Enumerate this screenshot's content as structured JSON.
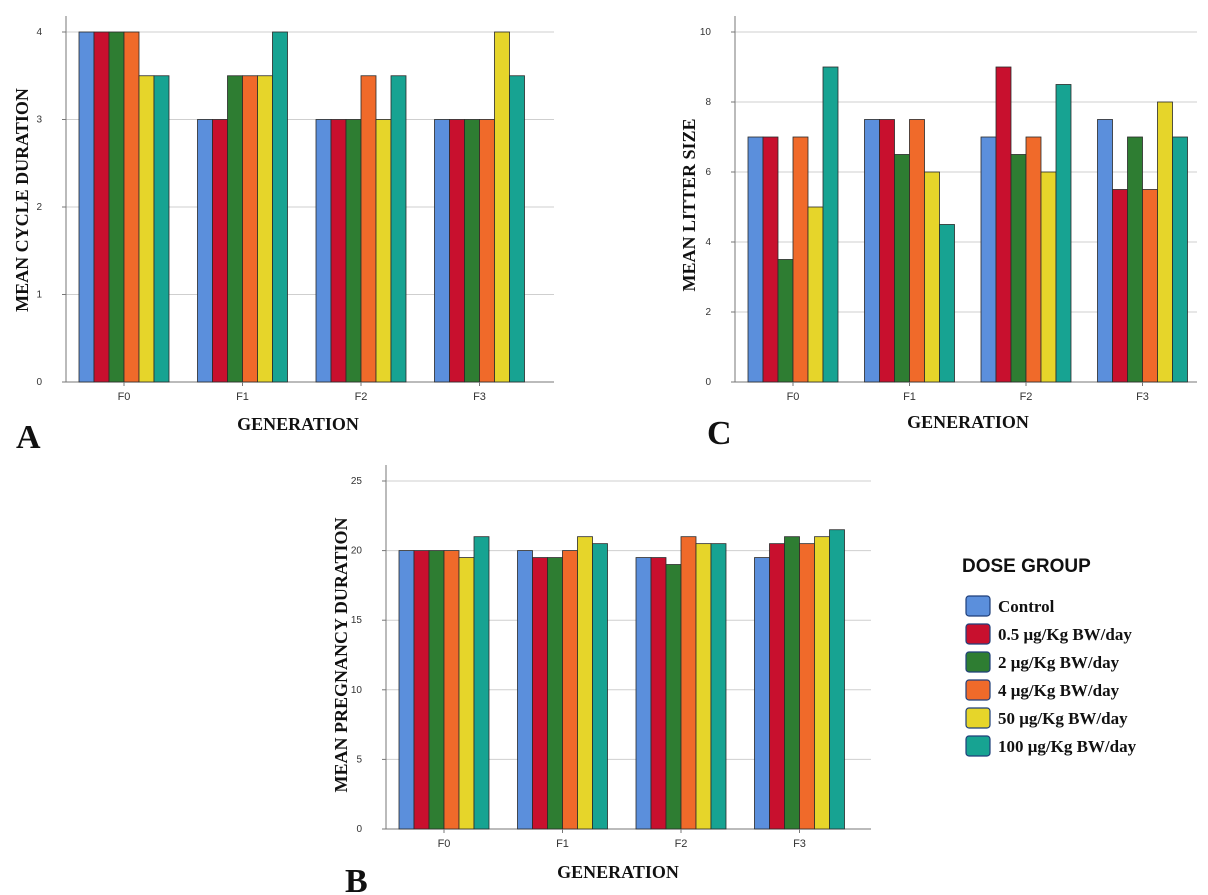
{
  "chart_data": [
    {
      "panel": "A",
      "type": "bar",
      "xlabel": "GENERATION",
      "ylabel": "MEAN CYCLE DURATION",
      "ylim": [
        0,
        4
      ],
      "yticks": [
        0,
        1,
        2,
        3,
        4
      ],
      "grid": true,
      "categories": [
        "F0",
        "F1",
        "F2",
        "F3"
      ],
      "series": [
        {
          "name": "Control",
          "values": [
            4,
            3,
            3,
            3
          ]
        },
        {
          "name": "0.5 μg/Kg BW/day",
          "values": [
            4,
            3,
            3,
            3
          ]
        },
        {
          "name": "2 μg/Kg BW/day",
          "values": [
            4,
            3.5,
            3,
            3
          ]
        },
        {
          "name": "4 μg/Kg BW/day",
          "values": [
            4,
            3.5,
            3.5,
            3
          ]
        },
        {
          "name": "50 μg/Kg BW/day",
          "values": [
            3.5,
            3.5,
            3,
            4
          ]
        },
        {
          "name": "100 μg/Kg BW/day",
          "values": [
            3.5,
            4,
            3.5,
            3.5
          ]
        }
      ]
    },
    {
      "panel": "C",
      "type": "bar",
      "xlabel": "GENERATION",
      "ylabel": "MEAN LITTER SIZE",
      "ylim": [
        0,
        10
      ],
      "yticks": [
        0,
        2,
        4,
        6,
        8,
        10
      ],
      "grid": true,
      "categories": [
        "F0",
        "F1",
        "F2",
        "F3"
      ],
      "series": [
        {
          "name": "Control",
          "values": [
            7,
            7.5,
            7,
            7.5
          ]
        },
        {
          "name": "0.5 μg/Kg BW/day",
          "values": [
            7,
            7.5,
            9,
            5.5
          ]
        },
        {
          "name": "2 μg/Kg BW/day",
          "values": [
            3.5,
            6.5,
            6.5,
            7
          ]
        },
        {
          "name": "4 μg/Kg BW/day",
          "values": [
            7,
            7.5,
            7,
            5.5
          ]
        },
        {
          "name": "50 μg/Kg BW/day",
          "values": [
            5,
            6,
            6,
            8
          ]
        },
        {
          "name": "100 μg/Kg BW/day",
          "values": [
            9,
            4.5,
            8.5,
            7
          ]
        }
      ]
    },
    {
      "panel": "B",
      "type": "bar",
      "xlabel": "GENERATION",
      "ylabel": "MEAN PREGNANCY DURATION",
      "ylim": [
        0,
        25
      ],
      "yticks": [
        0,
        5,
        10,
        15,
        20,
        25
      ],
      "grid": true,
      "categories": [
        "F0",
        "F1",
        "F2",
        "F3"
      ],
      "series": [
        {
          "name": "Control",
          "values": [
            20,
            20,
            19.5,
            19.5
          ]
        },
        {
          "name": "0.5 μg/Kg BW/day",
          "values": [
            20,
            19.5,
            19.5,
            20.5
          ]
        },
        {
          "name": "2 μg/Kg BW/day",
          "values": [
            20,
            19.5,
            19,
            21
          ]
        },
        {
          "name": "4 μg/Kg BW/day",
          "values": [
            20,
            20,
            21,
            20.5
          ]
        },
        {
          "name": "50 μg/Kg BW/day",
          "values": [
            19.5,
            21,
            20.5,
            21
          ]
        },
        {
          "name": "100 μg/Kg BW/day",
          "values": [
            21,
            20.5,
            20.5,
            21.5
          ]
        }
      ]
    }
  ],
  "legend": {
    "title": "DOSE GROUP",
    "placement": "right",
    "items": [
      {
        "label": "Control",
        "color": "#5b8fdc"
      },
      {
        "label": "0.5 μg/Kg BW/day",
        "color": "#c8102e"
      },
      {
        "label": "2 μg/Kg BW/day",
        "color": "#2e7d32"
      },
      {
        "label": "4 μg/Kg BW/day",
        "color": "#f06a2a"
      },
      {
        "label": "50 μg/Kg BW/day",
        "color": "#e6d52a"
      },
      {
        "label": "100 μg/Kg BW/day",
        "color": "#17a392"
      }
    ]
  }
}
